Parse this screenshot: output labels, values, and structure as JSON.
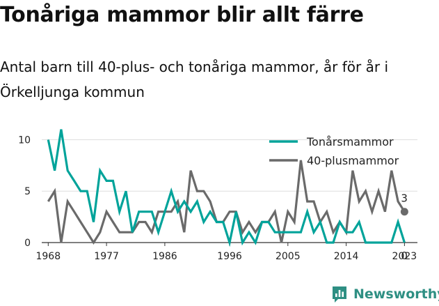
{
  "title": "Tonåriga mammor blir allt färre",
  "subtitle": "Antal barn till 40-plus- och tonåriga mammor, år för år i Örkelljunga kommun",
  "brand": {
    "name": "Newsworthy",
    "icon": "bar-chart-icon",
    "color": "#2e8f83"
  },
  "chart_data": {
    "type": "line",
    "x": [
      1968,
      1969,
      1970,
      1971,
      1972,
      1973,
      1974,
      1975,
      1976,
      1977,
      1978,
      1979,
      1980,
      1981,
      1982,
      1983,
      1984,
      1985,
      1986,
      1987,
      1988,
      1989,
      1990,
      1991,
      1992,
      1993,
      1994,
      1995,
      1996,
      1997,
      1998,
      1999,
      2000,
      2001,
      2002,
      2003,
      2004,
      2005,
      2006,
      2007,
      2008,
      2009,
      2010,
      2011,
      2012,
      2013,
      2014,
      2015,
      2016,
      2017,
      2018,
      2019,
      2020,
      2021,
      2022,
      2023
    ],
    "series": [
      {
        "name": "Tonårsmammor",
        "color": "#00a39a",
        "values": [
          10,
          7,
          11,
          7,
          6,
          5,
          5,
          2,
          7,
          6,
          6,
          3,
          5,
          1,
          3,
          3,
          3,
          1,
          3,
          5,
          3,
          4,
          3,
          4,
          2,
          3,
          2,
          2,
          0,
          3,
          0,
          1,
          0,
          2,
          2,
          1,
          1,
          1,
          1,
          1,
          3,
          1,
          2,
          0,
          0,
          2,
          1,
          1,
          2,
          0,
          0,
          0,
          0,
          0,
          2,
          0
        ]
      },
      {
        "name": "40-plusmammor",
        "color": "#6a6a6a",
        "values": [
          4,
          5,
          0,
          4,
          3,
          2,
          1,
          0,
          1,
          3,
          2,
          1,
          1,
          1,
          2,
          2,
          1,
          3,
          3,
          3,
          4,
          1,
          7,
          5,
          5,
          4,
          2,
          2,
          3,
          3,
          1,
          2,
          1,
          2,
          2,
          3,
          0,
          3,
          2,
          8,
          4,
          4,
          2,
          3,
          1,
          2,
          1,
          7,
          4,
          5,
          3,
          5,
          3,
          7,
          4,
          3
        ]
      }
    ],
    "xticks": [
      "1968",
      "1977",
      "1986",
      "1996",
      "2005",
      "2014",
      "2023"
    ],
    "xtick_values": [
      1968,
      1977,
      1986,
      1996,
      2005,
      2014,
      2023
    ],
    "yticks": [
      "0",
      "5",
      "10"
    ],
    "ytick_values": [
      0,
      5,
      10
    ],
    "xlim": [
      1967,
      2025
    ],
    "ylim": [
      0,
      10.5
    ],
    "grid": "horizontal",
    "legend_position": "top-right",
    "end_labels": {
      "Tonårsmammor": "0",
      "40-plusmammor": "3"
    },
    "gridline_color": "#dddddd"
  }
}
